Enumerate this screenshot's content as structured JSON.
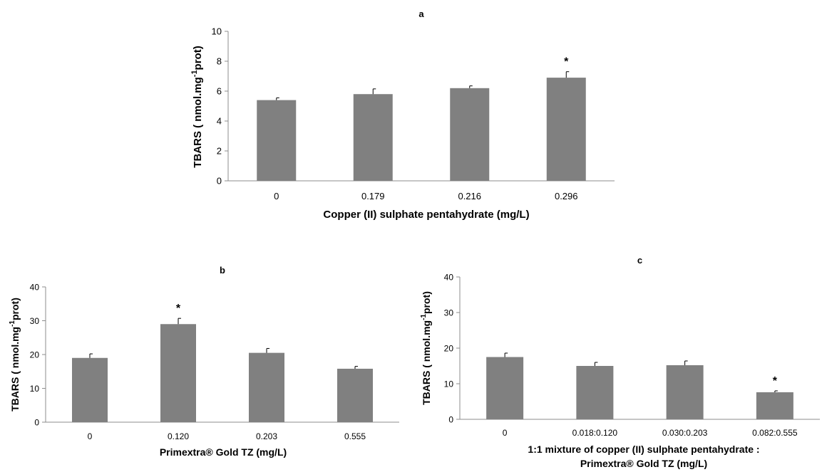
{
  "chart_data": [
    {
      "panel_id": "a",
      "type": "bar",
      "title": "a",
      "xlabel": "Copper (II) sulphate pentahydrate (mg/L)",
      "ylabel": "TBARS ( nmol.mg-1prot)",
      "ylabel_parts": {
        "main": "TBARS ( nmol.mg",
        "sup": "-1",
        "tail": "prot)"
      },
      "categories": [
        "0",
        "0.179",
        "0.216",
        "0.296"
      ],
      "values": [
        5.4,
        5.8,
        6.2,
        6.9
      ],
      "errors": [
        0.15,
        0.35,
        0.15,
        0.4
      ],
      "significance": [
        "",
        "",
        "",
        "*"
      ],
      "ylim": [
        0,
        10
      ],
      "yticks": [
        0,
        2,
        4,
        6,
        8,
        10
      ],
      "bar_color": "#808080",
      "grid": false
    },
    {
      "panel_id": "b",
      "type": "bar",
      "title": "b",
      "xlabel": "Primextra® Gold TZ (mg/L)",
      "ylabel": "TBARS ( nmol.mg-1prot)",
      "ylabel_parts": {
        "main": "TBARS ( nmol.mg",
        "sup": "-1",
        "tail": "prot)"
      },
      "categories": [
        "0",
        "0.120",
        "0.203",
        "0.555"
      ],
      "values": [
        19,
        29,
        20.5,
        15.8
      ],
      "errors": [
        1.2,
        1.7,
        1.3,
        0.7
      ],
      "significance": [
        "",
        "*",
        "",
        ""
      ],
      "ylim": [
        0,
        40
      ],
      "yticks": [
        0,
        10,
        20,
        30,
        40
      ],
      "bar_color": "#808080",
      "grid": false
    },
    {
      "panel_id": "c",
      "type": "bar",
      "title": "c",
      "xlabel": "1:1 mixture of copper (II) sulphate pentahydrate : Primextra® Gold TZ (mg/L)",
      "xlabel_lines": [
        "1:1 mixture of copper (II) sulphate pentahydrate :",
        "Primextra® Gold TZ (mg/L)"
      ],
      "ylabel": "TBARS ( nmol.mg-1prot)",
      "ylabel_parts": {
        "main": "TBARS ( nmol.mg",
        "sup": "-1",
        "tail": "prot)"
      },
      "categories": [
        "0",
        "0.018:0.120",
        "0.030:0.203",
        "0.082:0.555"
      ],
      "values": [
        17.5,
        15,
        15.2,
        7.6
      ],
      "errors": [
        1.1,
        1.0,
        1.2,
        0.4
      ],
      "significance": [
        "",
        "",
        "",
        "*"
      ],
      "ylim": [
        0,
        40
      ],
      "yticks": [
        0,
        10,
        20,
        30,
        40
      ],
      "bar_color": "#808080",
      "grid": false
    }
  ]
}
